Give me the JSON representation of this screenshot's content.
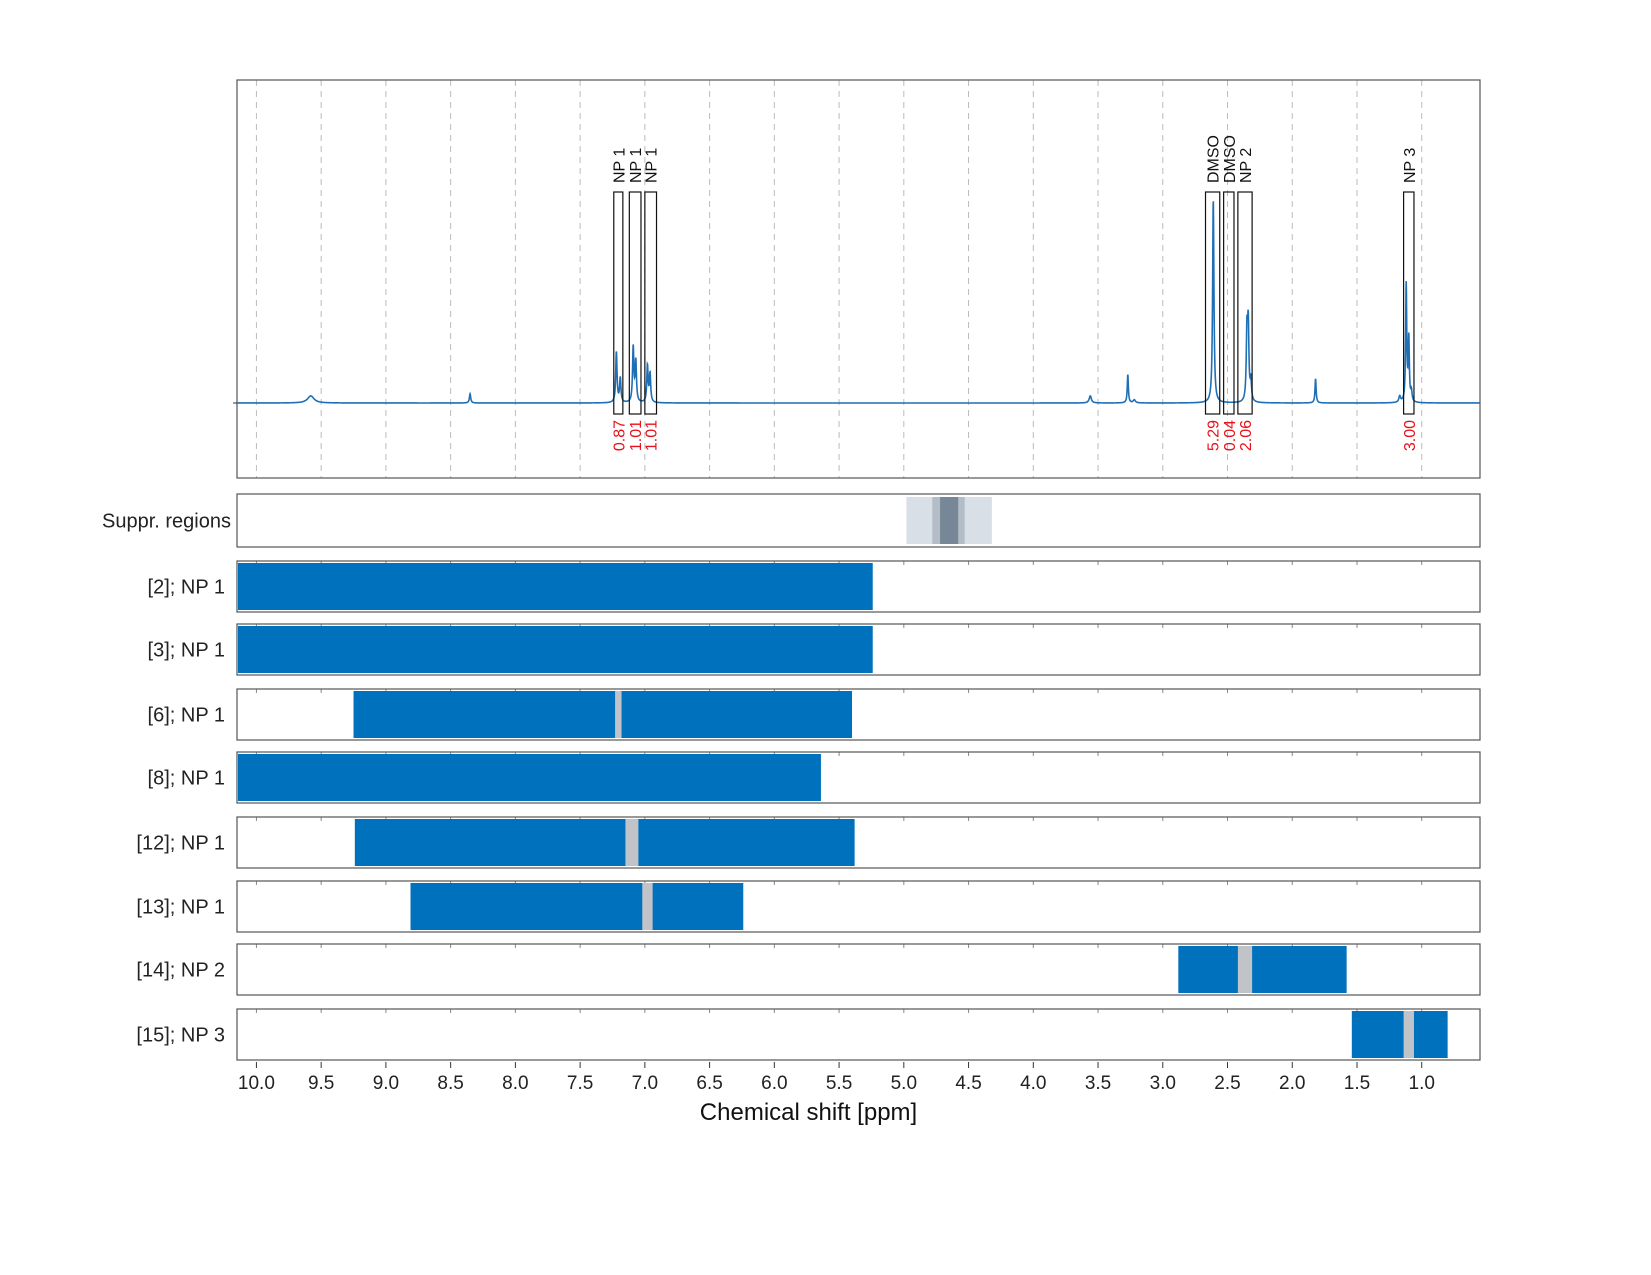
{
  "chart_data": {
    "type": "line",
    "xlabel": "Chemical shift [ppm]",
    "xlim": [
      10.15,
      0.55
    ],
    "x_ticks": [
      "10.0",
      "9.5",
      "9.0",
      "8.5",
      "8.0",
      "7.5",
      "7.0",
      "6.5",
      "6.0",
      "5.5",
      "5.0",
      "4.5",
      "4.0",
      "3.5",
      "3.0",
      "2.5",
      "2.0",
      "1.5",
      "1.0"
    ],
    "grid": true,
    "colors": {
      "spectrum": "#1f6fb5",
      "bar": "#0072bd",
      "gap": "#c0c4c8",
      "integral": "#e8101a",
      "suppr_light": "#d8dfe7",
      "suppr_mid": "#b3bcc7",
      "suppr_dark": "#788797"
    },
    "spectrum_peaks": [
      {
        "ppm": 9.58,
        "height": 0.035,
        "width": 0.03
      },
      {
        "ppm": 8.35,
        "height": 0.045,
        "width": 0.006
      },
      {
        "ppm": 7.22,
        "height": 0.25,
        "width": 0.006
      },
      {
        "ppm": 7.19,
        "height": 0.12,
        "width": 0.006
      },
      {
        "ppm": 7.09,
        "height": 0.27,
        "width": 0.006
      },
      {
        "ppm": 7.07,
        "height": 0.2,
        "width": 0.006
      },
      {
        "ppm": 6.98,
        "height": 0.18,
        "width": 0.006
      },
      {
        "ppm": 6.96,
        "height": 0.14,
        "width": 0.006
      },
      {
        "ppm": 3.56,
        "height": 0.035,
        "width": 0.01
      },
      {
        "ppm": 3.27,
        "height": 0.14,
        "width": 0.005
      },
      {
        "ppm": 3.22,
        "height": 0.015,
        "width": 0.01
      },
      {
        "ppm": 2.61,
        "height": 1.0,
        "width": 0.006
      },
      {
        "ppm": 2.35,
        "height": 0.33,
        "width": 0.006
      },
      {
        "ppm": 2.34,
        "height": 0.36,
        "width": 0.006
      },
      {
        "ppm": 2.32,
        "height": 0.1,
        "width": 0.006
      },
      {
        "ppm": 1.82,
        "height": 0.12,
        "width": 0.005
      },
      {
        "ppm": 1.17,
        "height": 0.03,
        "width": 0.008
      },
      {
        "ppm": 1.12,
        "height": 0.58,
        "width": 0.005
      },
      {
        "ppm": 1.1,
        "height": 0.31,
        "width": 0.005
      },
      {
        "ppm": 1.08,
        "height": 0.05,
        "width": 0.006
      }
    ],
    "integration_regions": [
      {
        "label": "NP 1",
        "from": 7.24,
        "to": 7.17,
        "integral": "0.87"
      },
      {
        "label": "NP 1",
        "from": 7.12,
        "to": 7.03,
        "integral": "1.01"
      },
      {
        "label": "NP 1",
        "from": 7.0,
        "to": 6.91,
        "integral": "1.01"
      },
      {
        "label": "DMSO",
        "from": 2.67,
        "to": 2.56,
        "integral": "5.29"
      },
      {
        "label": "DMSO",
        "from": 2.53,
        "to": 2.45,
        "integral": "0.04"
      },
      {
        "label": "NP 2",
        "from": 2.42,
        "to": 2.31,
        "integral": "2.06"
      },
      {
        "label": "NP 3",
        "from": 1.14,
        "to": 1.06,
        "integral": "3.00"
      }
    ],
    "suppressed_regions": {
      "label": "Suppr. regions",
      "bands": [
        {
          "from": 4.98,
          "to": 4.32,
          "level": "light"
        },
        {
          "from": 4.78,
          "to": 4.53,
          "level": "mid"
        },
        {
          "from": 4.72,
          "to": 4.58,
          "level": "dark"
        }
      ]
    },
    "rows": [
      {
        "label": "[2]; NP 1",
        "from": 10.15,
        "to": 5.24,
        "gaps": []
      },
      {
        "label": "[3]; NP 1",
        "from": 10.15,
        "to": 5.24,
        "gaps": []
      },
      {
        "label": "[6]; NP 1",
        "from": 9.25,
        "to": 5.4,
        "gaps": [
          [
            7.23,
            7.18
          ]
        ]
      },
      {
        "label": "[8]; NP 1",
        "from": 10.15,
        "to": 5.64,
        "gaps": []
      },
      {
        "label": "[12]; NP 1",
        "from": 9.24,
        "to": 5.38,
        "gaps": [
          [
            7.15,
            7.05
          ]
        ]
      },
      {
        "label": "[13]; NP 1",
        "from": 8.81,
        "to": 6.24,
        "gaps": [
          [
            7.02,
            6.94
          ]
        ]
      },
      {
        "label": "[14]; NP 2",
        "from": 2.88,
        "to": 1.58,
        "gaps": [
          [
            2.42,
            2.31
          ]
        ]
      },
      {
        "label": "[15]; NP 3",
        "from": 1.54,
        "to": 0.8,
        "gaps": [
          [
            1.14,
            1.06
          ]
        ]
      }
    ]
  }
}
